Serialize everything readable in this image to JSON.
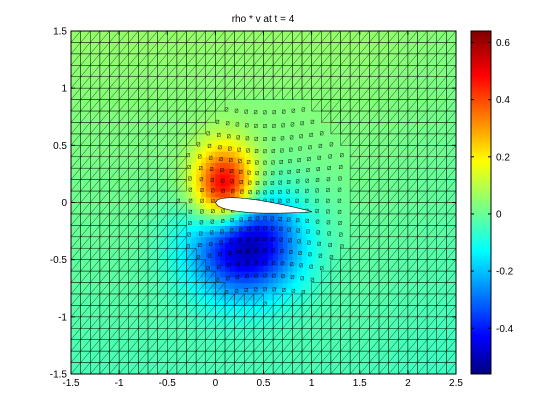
{
  "chart_data": {
    "type": "heatmap",
    "title": "rho * v at t = 4",
    "xlabel": "",
    "ylabel": "",
    "xlim": [
      -1.5,
      2.5
    ],
    "ylim": [
      -1.5,
      1.5
    ],
    "xticks": [
      -1.5,
      -1,
      -0.5,
      0,
      0.5,
      1,
      1.5,
      2,
      2.5
    ],
    "xtick_labels": [
      "-1.5",
      "-1",
      "-0.5",
      "0",
      "0.5",
      "1",
      "1.5",
      "2",
      "2.5"
    ],
    "yticks": [
      -1.5,
      -1,
      -0.5,
      0,
      0.5,
      1,
      1.5
    ],
    "ytick_labels": [
      "-1.5",
      "-1",
      "-0.5",
      "0",
      "0.5",
      "1",
      "1.5"
    ],
    "colorbar": {
      "colormap": "jet",
      "range": [
        -0.56,
        0.64
      ],
      "ticks": [
        -0.4,
        -0.2,
        0,
        0.2,
        0.4,
        0.6
      ],
      "tick_labels": [
        "-0.4",
        "-0.2",
        "0",
        "0.2",
        "0.4",
        "0.6"
      ]
    },
    "mesh": "triangular, refined near airfoil",
    "airfoil": {
      "leading_edge": [
        0.0,
        0.0
      ],
      "trailing_edge": [
        1.0,
        -0.08
      ],
      "thickness": 0.12
    },
    "field_features": [
      {
        "x": 0.1,
        "y": 0.12,
        "value": 0.6,
        "note": "positive peak above leading edge"
      },
      {
        "x": 0.3,
        "y": -0.35,
        "value": -0.55,
        "note": "negative peak below airfoil"
      }
    ],
    "background_value": 0.02,
    "grid": false
  }
}
